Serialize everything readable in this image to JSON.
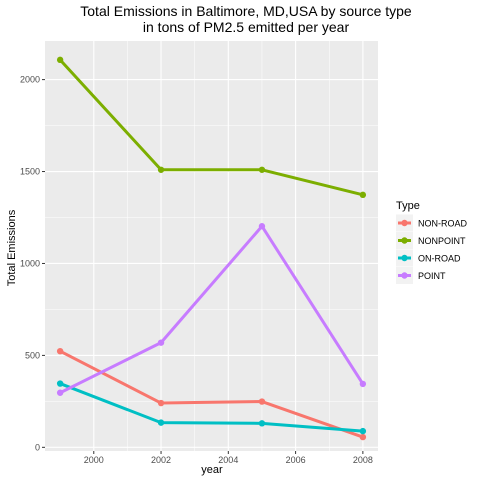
{
  "chart_data": {
    "type": "line",
    "title": "Total Emissions in Baltimore, MD,USA by source type",
    "subtitle": "in tons of PM2.5 emitted per year",
    "xlabel": "year",
    "ylabel": "Total Emissions",
    "x": [
      1999,
      2002,
      2005,
      2008
    ],
    "xlim": [
      1998.55,
      2008.45
    ],
    "ylim": [
      -20,
      2210
    ],
    "x_ticks": [
      2000,
      2002,
      2004,
      2006,
      2008
    ],
    "y_ticks": [
      0,
      500,
      1000,
      1500,
      2000
    ],
    "grid": true,
    "legend_title": "Type",
    "legend_position": "right",
    "series": [
      {
        "name": "NON-ROAD",
        "color": "#F8766D",
        "values": [
          522.9,
          240.8,
          248.9,
          55.8
        ]
      },
      {
        "name": "NONPOINT",
        "color": "#7CAE00",
        "values": [
          2107.6,
          1509.5,
          1509.5,
          1373.2
        ]
      },
      {
        "name": "ON-ROAD",
        "color": "#00BFC4",
        "values": [
          346.8,
          134.3,
          130.4,
          88.3
        ]
      },
      {
        "name": "POINT",
        "color": "#C77CFF",
        "values": [
          296.8,
          569.3,
          1202.5,
          344.98
        ]
      }
    ],
    "panel_background": "#EBEBEB",
    "grid_color": "#FFFFFF"
  }
}
